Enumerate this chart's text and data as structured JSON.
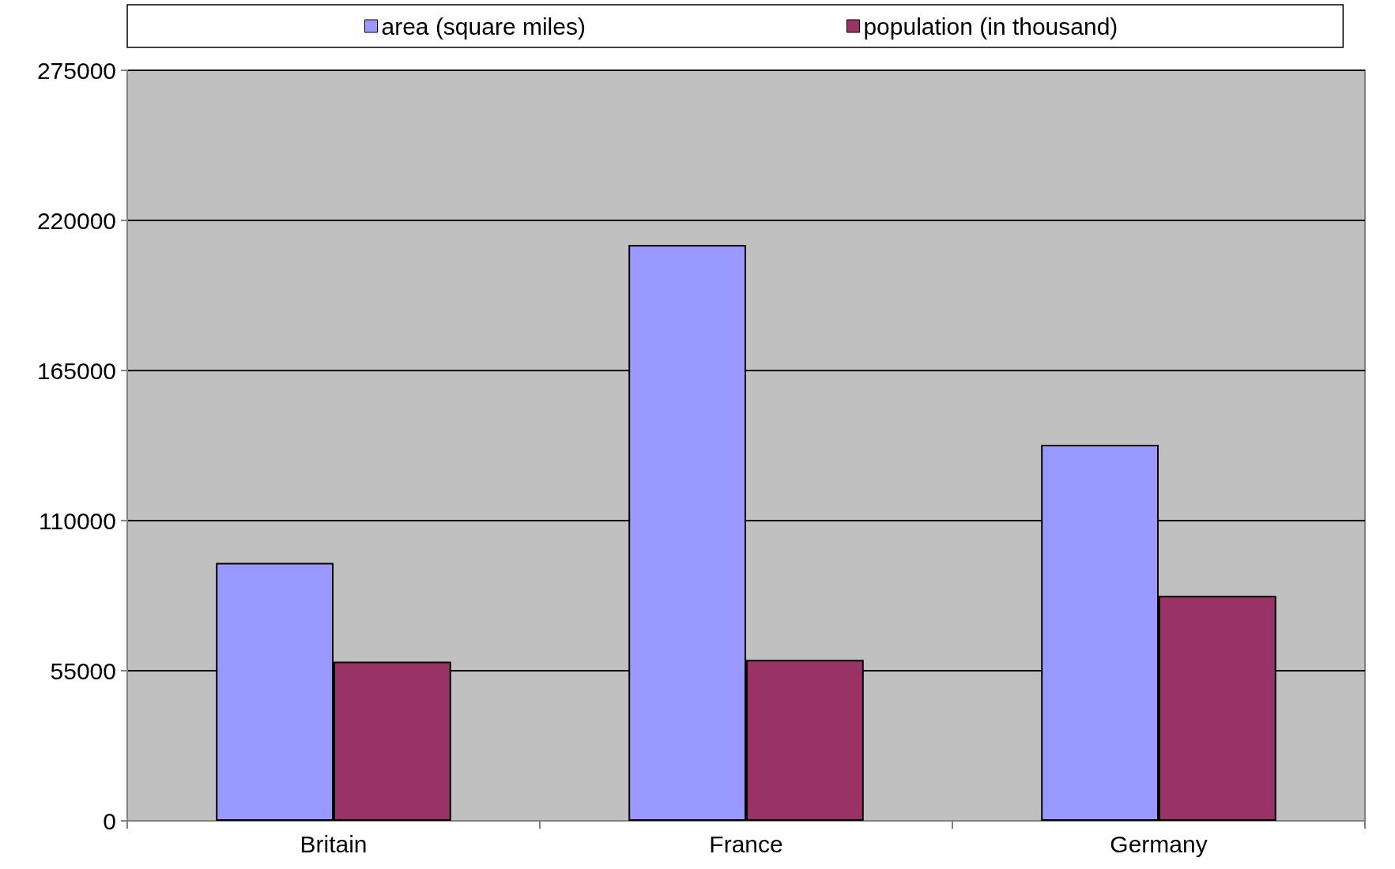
{
  "chart_data": {
    "type": "bar",
    "categories": [
      "Britain",
      "France",
      "Germany"
    ],
    "series": [
      {
        "name": "area (square miles)",
        "color": "#9999ff",
        "values": [
          94500,
          211000,
          137800
        ]
      },
      {
        "name": "population (in thousand)",
        "color": "#993366",
        "values": [
          58300,
          59000,
          82400
        ]
      }
    ],
    "ylim": [
      0,
      275000
    ],
    "yticks": [
      0,
      55000,
      110000,
      165000,
      220000,
      275000
    ],
    "grid": "y",
    "legend": "top"
  }
}
